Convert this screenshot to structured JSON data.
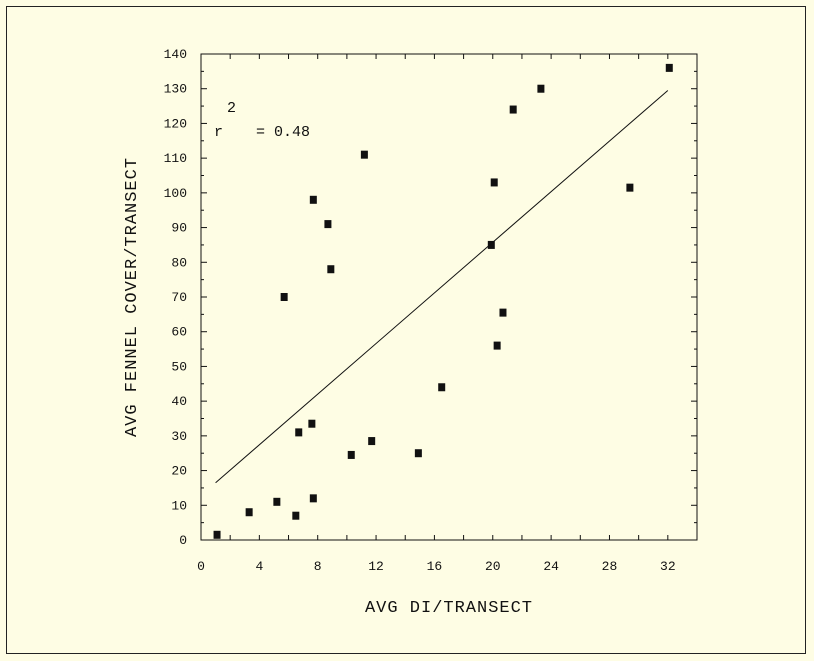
{
  "chart_data": {
    "type": "scatter",
    "xlabel": "AVG DI/TRANSECT",
    "ylabel": "AVG FENNEL COVER/TRANSECT",
    "xlim": [
      0,
      34
    ],
    "ylim": [
      0,
      140
    ],
    "x_ticks": [
      0,
      4,
      8,
      12,
      16,
      20,
      24,
      28,
      32
    ],
    "y_ticks": [
      0,
      10,
      20,
      30,
      40,
      50,
      60,
      70,
      80,
      90,
      100,
      110,
      120,
      130,
      140
    ],
    "grid": false,
    "points": [
      {
        "x": 1.1,
        "y": 1.5
      },
      {
        "x": 3.3,
        "y": 8
      },
      {
        "x": 5.2,
        "y": 11
      },
      {
        "x": 5.7,
        "y": 70
      },
      {
        "x": 6.5,
        "y": 7
      },
      {
        "x": 6.7,
        "y": 31
      },
      {
        "x": 7.6,
        "y": 33.5
      },
      {
        "x": 7.7,
        "y": 12
      },
      {
        "x": 7.7,
        "y": 98
      },
      {
        "x": 8.7,
        "y": 91
      },
      {
        "x": 8.9,
        "y": 78
      },
      {
        "x": 10.3,
        "y": 24.5
      },
      {
        "x": 11.2,
        "y": 111
      },
      {
        "x": 11.7,
        "y": 28.5
      },
      {
        "x": 14.9,
        "y": 25
      },
      {
        "x": 16.5,
        "y": 44
      },
      {
        "x": 19.9,
        "y": 85
      },
      {
        "x": 20.1,
        "y": 103
      },
      {
        "x": 20.3,
        "y": 56
      },
      {
        "x": 20.7,
        "y": 65.5
      },
      {
        "x": 21.4,
        "y": 124
      },
      {
        "x": 23.3,
        "y": 130
      },
      {
        "x": 29.4,
        "y": 101.5
      },
      {
        "x": 32.1,
        "y": 136
      }
    ],
    "fit_line": {
      "x": [
        1.0,
        32.0
      ],
      "y": [
        16.5,
        129.5
      ]
    },
    "annotation": {
      "r_symbol": "r",
      "exponent": "2",
      "value_text": "= 0.48"
    }
  }
}
